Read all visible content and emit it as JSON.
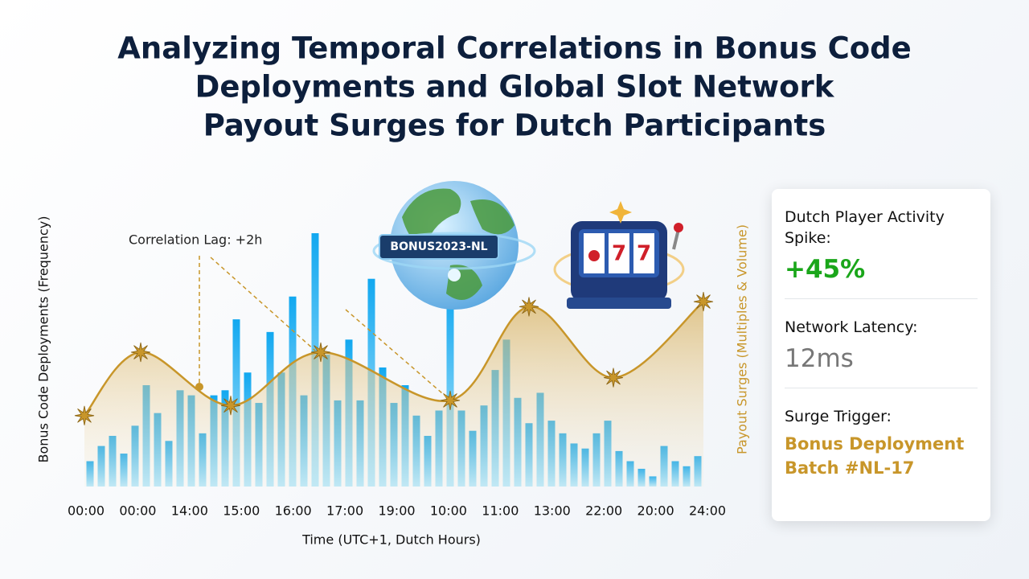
{
  "chart_data": {
    "type": "bar",
    "title_lines": [
      "Analyzing Temporal Correlations in Bonus Code",
      "Deployments and Global Slot Network",
      "Payout Surges for Dutch Participants"
    ],
    "y_label": "Bonus Code Deployments (Frequency)",
    "y2_label": "Payout Surges (Multiples & Volume)",
    "x_label": "Time (UTC+1, Dutch Hours)",
    "x_labels": [
      "00:00",
      "00:00",
      "14:00",
      "15:00",
      "16:00",
      "17:00",
      "19:00",
      "10:00",
      "11:00",
      "13:00",
      "22:00",
      "20:00",
      "24:00"
    ],
    "annotation": "Correlation Lag: +2h",
    "badge": "BONUS2023-NL",
    "xlim": [
      0,
      55
    ],
    "ylim": [
      0,
      100
    ],
    "y2lim": [
      0,
      100
    ],
    "series": [
      {
        "type": "bar",
        "color": "#1ab0f0",
        "values": [
          10,
          16,
          20,
          13,
          24,
          40,
          29,
          18,
          38,
          36,
          21,
          36,
          38,
          66,
          45,
          33,
          61,
          45,
          75,
          36,
          100,
          52,
          34,
          58,
          34,
          82,
          47,
          33,
          40,
          28,
          20,
          30,
          77,
          30,
          22,
          32,
          46,
          58,
          35,
          25,
          37,
          26,
          21,
          17,
          15,
          21,
          26,
          14,
          10,
          7,
          4,
          16,
          10,
          8,
          12
        ]
      },
      {
        "type": "line",
        "axis": "y2",
        "color": "#c8962a",
        "x": [
          0,
          5,
          13,
          21,
          32.5,
          39.5,
          47,
          55
        ],
        "values": [
          28,
          53,
          32,
          53,
          34,
          71,
          43,
          73
        ]
      }
    ]
  },
  "panel": {
    "items": [
      {
        "label": "Dutch Player Activity Spike:",
        "value": "+45%"
      },
      {
        "label": "Network Latency:",
        "value": "12ms"
      },
      {
        "label": "Surge Trigger:",
        "value": "Bonus Deployment Batch #NL-17"
      }
    ]
  }
}
